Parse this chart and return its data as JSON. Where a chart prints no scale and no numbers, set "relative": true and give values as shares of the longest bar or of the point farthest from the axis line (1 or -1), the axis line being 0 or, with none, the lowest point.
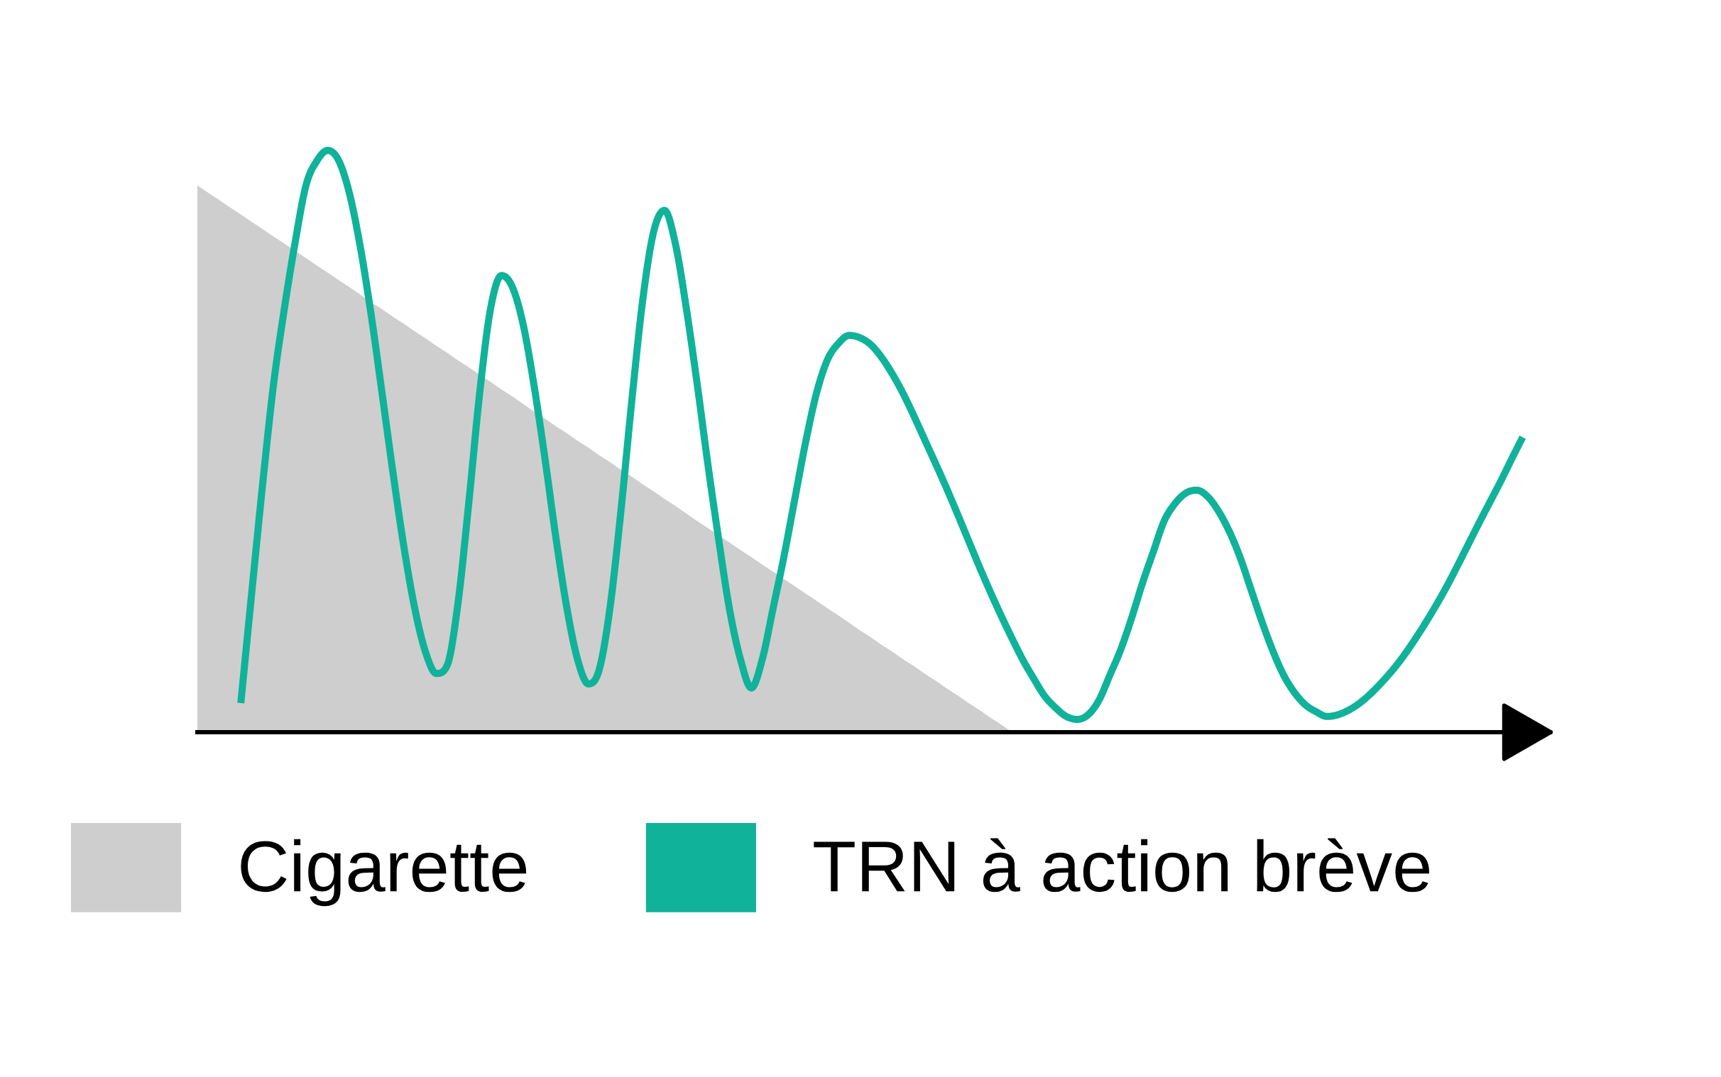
{
  "chart_data": {
    "type": "line",
    "relative": true,
    "legend": "bottom",
    "marker": "none",
    "line_style": "solid",
    "categories": [
      null,
      null,
      null,
      null,
      null,
      null,
      null,
      null,
      null,
      null,
      null,
      null,
      null,
      null,
      null,
      null,
      null,
      null,
      null,
      null,
      null,
      null,
      null,
      null,
      null,
      null,
      null,
      null,
      null,
      null,
      null,
      null,
      null,
      null,
      null,
      null,
      null,
      null,
      null,
      null,
      null,
      null,
      null,
      null,
      null,
      null,
      null,
      null,
      null,
      null,
      null,
      null,
      null,
      null,
      null,
      null,
      null,
      null,
      null,
      null,
      null,
      null,
      null,
      null,
      null,
      null,
      null,
      null,
      null,
      null,
      null,
      null,
      null,
      null,
      null,
      null,
      null,
      null,
      null,
      null,
      null,
      null,
      null,
      null,
      null,
      null,
      null,
      null,
      null,
      null,
      null,
      null,
      null,
      null,
      null,
      null,
      null,
      null,
      null,
      null,
      null,
      null,
      null,
      null,
      null,
      null,
      null,
      null,
      null,
      null,
      null,
      null,
      null,
      null,
      null,
      null,
      null,
      null,
      null,
      null,
      null,
      null,
      null
    ],
    "series": [
      {
        "name": "Cigarette",
        "type": "area",
        "color": "#cecece",
        "values": [
          0.94,
          0.927,
          0.915,
          0.902,
          0.89,
          0.877,
          0.865,
          0.852,
          0.84,
          0.827,
          0.815,
          0.802,
          0.79,
          0.777,
          0.765,
          0.752,
          0.739,
          0.727,
          0.714,
          0.702,
          0.689,
          0.677,
          0.664,
          0.652,
          0.639,
          0.627,
          0.614,
          0.602,
          0.589,
          0.577,
          0.564,
          0.551,
          0.539,
          0.526,
          0.514,
          0.501,
          0.489,
          0.476,
          0.464,
          0.451,
          0.439,
          0.426,
          0.414,
          0.401,
          0.389,
          0.376,
          0.363,
          0.351,
          0.338,
          0.326,
          0.313,
          0.301,
          0.288,
          0.276,
          0.263,
          0.251,
          0.238,
          0.226,
          0.213,
          0.201,
          0.188,
          0.175,
          0.163,
          0.15,
          0.138,
          0.125,
          0.113,
          0.1,
          0.088,
          0.075,
          0.063,
          0.05,
          0.038,
          0.025,
          0.013,
          0,
          null,
          null,
          null,
          null,
          null,
          null,
          null,
          null,
          null,
          null,
          null,
          null,
          null,
          null,
          null,
          null,
          null,
          null,
          null,
          null,
          null,
          null,
          null,
          null,
          null,
          null,
          null,
          null,
          null,
          null,
          null,
          null,
          null,
          null,
          null,
          null,
          null,
          null,
          null,
          null,
          null,
          null,
          null,
          null,
          null,
          null,
          null
        ]
      },
      {
        "name": "TRN à action brève",
        "color": "#10b29a",
        "values": [
          null,
          null,
          null,
          null,
          0.05,
          0.239,
          0.425,
          0.596,
          0.727,
          0.842,
          0.94,
          0.982,
          1.0,
          0.983,
          0.926,
          0.834,
          0.717,
          0.583,
          0.447,
          0.32,
          0.214,
          0.138,
          0.101,
          0.115,
          0.223,
          0.397,
          0.585,
          0.729,
          0.785,
          0.765,
          0.7,
          0.595,
          0.47,
          0.335,
          0.215,
          0.125,
          0.083,
          0.108,
          0.216,
          0.382,
          0.571,
          0.743,
          0.86,
          0.897,
          0.84,
          0.73,
          0.6,
          0.46,
          0.33,
          0.21,
          0.125,
          0.076,
          0.125,
          0.213,
          0.302,
          0.401,
          0.499,
          0.583,
          0.64,
          0.668,
          0.682,
          0.678,
          0.666,
          0.644,
          0.615,
          0.581,
          0.542,
          0.501,
          0.46,
          0.418,
          0.374,
          0.329,
          0.284,
          0.241,
          0.2,
          0.161,
          0.124,
          0.092,
          0.062,
          0.042,
          0.027,
          0.022,
          0.03,
          0.055,
          0.098,
          0.142,
          0.196,
          0.256,
          0.31,
          0.363,
          0.393,
          0.411,
          0.416,
          0.405,
          0.38,
          0.345,
          0.3,
          0.245,
          0.19,
          0.14,
          0.098,
          0.068,
          0.047,
          0.035,
          0.027,
          0.03,
          0.038,
          0.05,
          0.066,
          0.085,
          0.106,
          0.13,
          0.157,
          0.186,
          0.217,
          0.25,
          0.286,
          0.323,
          0.36,
          0.396,
          0.432,
          0.47,
          0.507
        ]
      }
    ]
  }
}
